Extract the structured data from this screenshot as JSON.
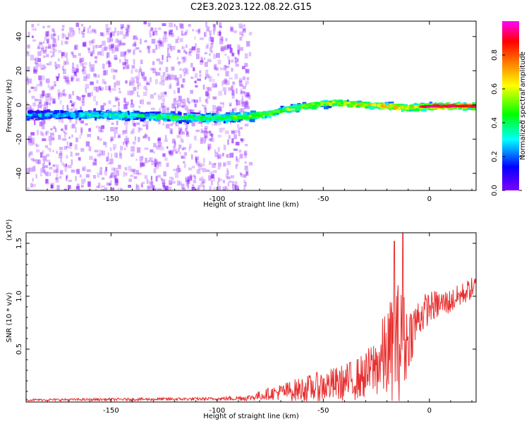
{
  "title": "C2E3.2023.122.08.22.G15",
  "chart_data": [
    {
      "type": "heatmap",
      "xlabel": "Height of straight line (km)",
      "ylabel": "Frequency (Hz)",
      "xlim": [
        -190,
        22
      ],
      "ylim": [
        -50,
        49
      ],
      "xticks": [
        -150,
        -100,
        -50,
        0
      ],
      "yticks": [
        -40,
        -20,
        0,
        20,
        40
      ],
      "colorbar": {
        "label": "Normalized spectral amplitude",
        "range": [
          0,
          1
        ],
        "ticks": [
          "0.0",
          "0.2",
          "0.4",
          "0.6",
          "0.8"
        ],
        "tick_values": [
          0,
          0.2,
          0.4,
          0.6,
          0.8
        ],
        "colormap": [
          "#8000ff",
          "#0000ff",
          "#00ffff",
          "#00ff00",
          "#ffff00",
          "#ff8000",
          "#ff0000",
          "#ff00ff"
        ]
      },
      "ridge": {
        "x": [
          -190,
          -160,
          -130,
          -110,
          -100,
          -85,
          -75,
          -60,
          -45,
          -35,
          -20,
          -10,
          0,
          10,
          22
        ],
        "freq": [
          -5,
          -5,
          -6,
          -7,
          -7,
          -6,
          -4,
          0,
          2,
          1,
          0,
          -1,
          0,
          0,
          0
        ]
      },
      "noise_region_x": [
        -190,
        -85
      ],
      "grid": false
    },
    {
      "type": "line",
      "xlabel": "Height of straight line (km)",
      "ylabel": "SNR (10 * v/v)",
      "y_multiplier": "(x10⁴)",
      "xlim": [
        -190,
        22
      ],
      "ylim": [
        0,
        1.6
      ],
      "xticks": [
        -150,
        -100,
        -50,
        0
      ],
      "yticks": [
        0.5,
        1.0,
        1.5
      ],
      "ytick_labels": [
        "0.5",
        "1.0",
        "1.5"
      ],
      "color": "#e83030",
      "envelope": {
        "x": [
          -190,
          -100,
          -85,
          -75,
          -60,
          -50,
          -40,
          -30,
          -25,
          -20,
          -15,
          -12,
          -10,
          -5,
          0,
          10,
          22
        ],
        "mean": [
          0.02,
          0.03,
          0.04,
          0.08,
          0.12,
          0.15,
          0.18,
          0.25,
          0.35,
          0.45,
          0.55,
          0.55,
          0.6,
          0.8,
          0.9,
          0.95,
          1.1
        ],
        "amplitude": [
          0.01,
          0.015,
          0.03,
          0.06,
          0.12,
          0.15,
          0.18,
          0.22,
          0.3,
          0.45,
          0.6,
          0.5,
          0.3,
          0.2,
          0.15,
          0.12,
          0.1
        ]
      },
      "spikes": [
        {
          "x": -16.5,
          "y": 1.52
        },
        {
          "x": -12.5,
          "y": 1.6
        }
      ]
    }
  ]
}
